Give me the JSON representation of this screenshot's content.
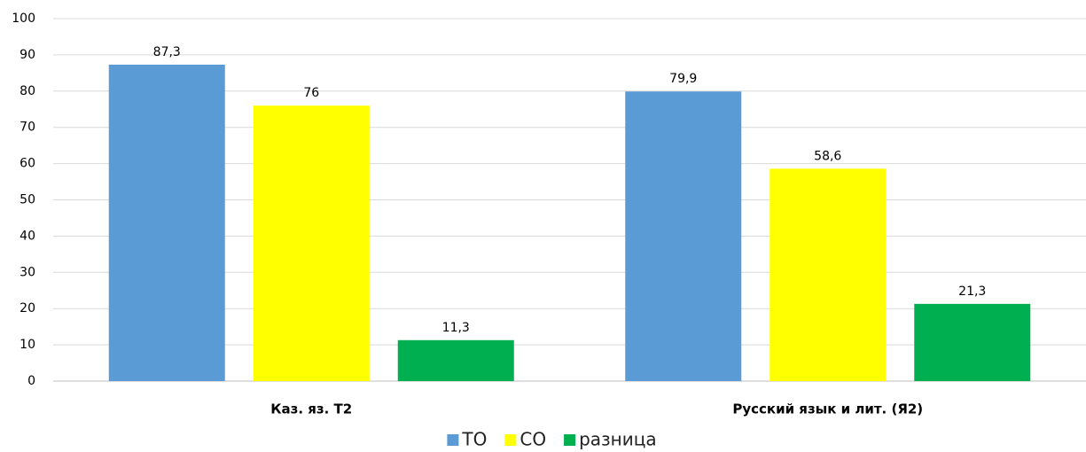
{
  "chart_data": {
    "type": "bar",
    "categories": [
      "Каз. яз. Т2",
      "Русский язык и лит. (Я2)"
    ],
    "series": [
      {
        "name": "ТО",
        "color": "#5b9bd5",
        "values": [
          87.3,
          79.9
        ],
        "value_labels": [
          "87,3",
          "79,9"
        ]
      },
      {
        "name": "СО",
        "color": "#ffff00",
        "values": [
          76,
          58.6
        ],
        "value_labels": [
          "76",
          "58,6"
        ]
      },
      {
        "name": "разница",
        "color": "#00b050",
        "values": [
          11.3,
          21.3
        ],
        "value_labels": [
          "11,3",
          "21,3"
        ]
      }
    ],
    "ylim": [
      0,
      100
    ],
    "yticks": [
      0,
      10,
      20,
      30,
      40,
      50,
      60,
      70,
      80,
      90,
      100
    ],
    "grid": true,
    "legend": "bottom"
  }
}
